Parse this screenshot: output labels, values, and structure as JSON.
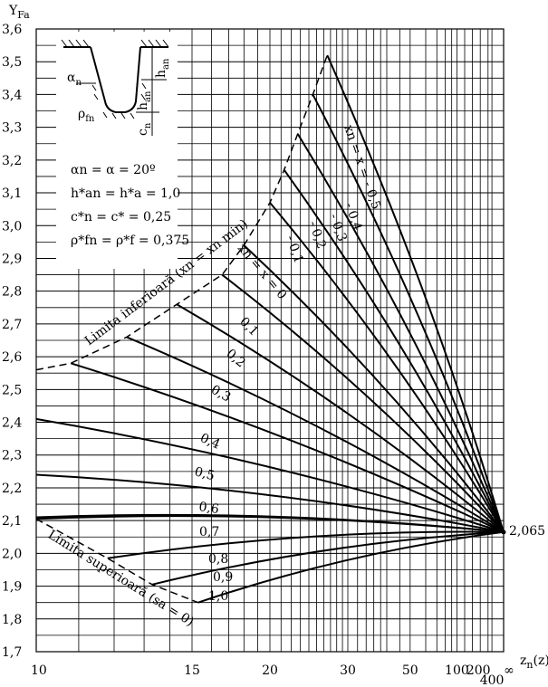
{
  "chart_data": {
    "type": "line",
    "title": "",
    "ylabel": "Y",
    "ylabel_sub": "Fa",
    "xlabel": "z",
    "xlabel_sub": "n",
    "xlabel_suffix": "(z)",
    "x_scale": "reciprocal",
    "ylim": [
      1.7,
      3.6
    ],
    "y_ticks": [
      "1,7",
      "1,8",
      "1,9",
      "2,0",
      "2,1",
      "2,2",
      "2,3",
      "2,4",
      "2,5",
      "2,6",
      "2,7",
      "2,8",
      "2,9",
      "3,0",
      "3,1",
      "3,2",
      "3,3",
      "3,4",
      "3,5",
      "3,6"
    ],
    "x_ticks": [
      {
        "z": 10,
        "label": "10"
      },
      {
        "z": 15,
        "label": "15"
      },
      {
        "z": 20,
        "label": "20"
      },
      {
        "z": 30,
        "label": "30"
      },
      {
        "z": 50,
        "label": "50"
      },
      {
        "z": 100,
        "label": "100"
      },
      {
        "z": 200,
        "label": "200"
      },
      {
        "z": 400,
        "label": "400"
      },
      {
        "z": 100000,
        "label": "∞"
      }
    ],
    "convergence": {
      "z": 100000,
      "y": 2.065,
      "label": "2,065"
    },
    "series": [
      {
        "name": "xn = x = - 0,5",
        "z_start": 26.5,
        "y_start": 3.52
      },
      {
        "name": "- 0,4",
        "z_start": 24.5,
        "y_start": 3.4
      },
      {
        "name": "- 0,3",
        "z_start": 22.7,
        "y_start": 3.28
      },
      {
        "name": "- 0,2",
        "z_start": 21.3,
        "y_start": 3.17
      },
      {
        "name": "- 0,1",
        "z_start": 20.0,
        "y_start": 3.07
      },
      {
        "name": "xn = x = 0",
        "z_start": 18.0,
        "y_start": 2.94
      },
      {
        "name": "0,1",
        "z_start": 16.6,
        "y_start": 2.85
      },
      {
        "name": "0,2",
        "z_start": 14.3,
        "y_start": 2.76
      },
      {
        "name": "0,3",
        "z_start": 12.4,
        "y_start": 2.66
      },
      {
        "name": "",
        "z_start": 10.8,
        "y_start": 2.58
      },
      {
        "name": "0,4",
        "z_start": 10.0,
        "y_start": 2.41
      },
      {
        "name": "0,5",
        "z_start": 10.0,
        "y_start": 2.24
      },
      {
        "name": "0,6",
        "z_start": 10.0,
        "y_start": 2.11
      },
      {
        "name": "0,7",
        "z_start": 10.0,
        "y_start": 2.105
      },
      {
        "name": "0,8",
        "z_start": 11.8,
        "y_start": 1.985
      },
      {
        "name": "0,9",
        "z_start": 13.3,
        "y_start": 1.905
      },
      {
        "name": "1,0",
        "z_start": 15.3,
        "y_start": 1.85
      }
    ],
    "boundary_lower": {
      "name": "Limita inferioară (xn = xn min)",
      "points": [
        [
          10,
          2.56
        ],
        [
          10.8,
          2.58
        ],
        [
          12.4,
          2.66
        ],
        [
          14.3,
          2.76
        ],
        [
          16.6,
          2.85
        ],
        [
          18,
          2.94
        ],
        [
          20,
          3.07
        ],
        [
          21.3,
          3.17
        ],
        [
          22.7,
          3.28
        ],
        [
          24.5,
          3.4
        ],
        [
          26.5,
          3.52
        ]
      ]
    },
    "boundary_upper": {
      "name": "Limita superioară (sa = 0)",
      "points": [
        [
          10,
          2.105
        ],
        [
          11.8,
          1.985
        ],
        [
          13.3,
          1.905
        ],
        [
          15.3,
          1.85
        ]
      ]
    }
  },
  "inset": {
    "alpha_label": "α",
    "alpha_sub": "n",
    "rho_label": "ρ",
    "rho_sub": "fn",
    "han_label": "h",
    "han_sub": "an",
    "cn_label": "c",
    "cn_sub": "n",
    "eq1": "αn = α = 20º",
    "eq2": "h*an = h*a = 1,0",
    "eq3": "c*n = c* = 0,25",
    "eq4": "ρ*fn = ρ*f = 0,375"
  }
}
